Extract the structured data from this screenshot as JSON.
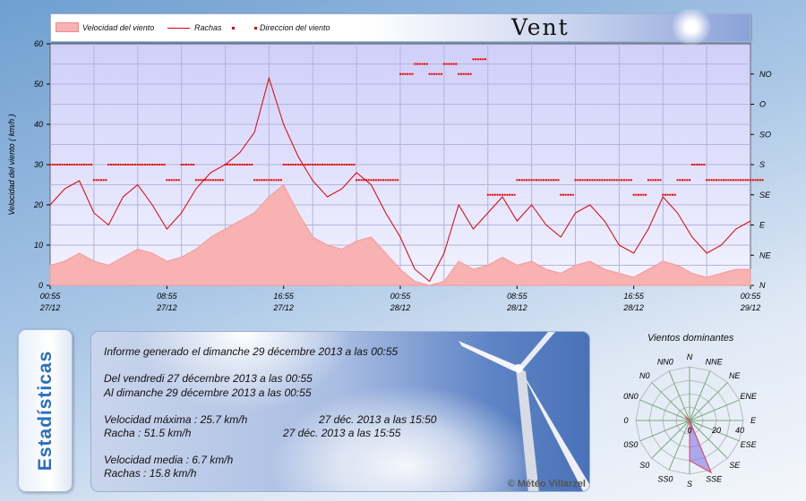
{
  "banner": {
    "title": "Vent",
    "legend": {
      "speed": "Velocidad del viento",
      "gust": "Rachas",
      "dir": "Direccion del viento"
    }
  },
  "colors": {
    "speed_fill": "#f9b2b2",
    "gust": "#dd0000",
    "dir": "#ee0000",
    "plot_bg": "#d4d4fb"
  },
  "chart_data": {
    "type": "line",
    "ylabel": "Velocidad del viento  ( km/h )",
    "ylim": [
      0,
      60
    ],
    "yticks": [
      "0",
      "10",
      "20",
      "30",
      "40",
      "50",
      "60"
    ],
    "y2ticks": [
      "N",
      "NE",
      "E",
      "SE",
      "S",
      "SO",
      "O",
      "NO"
    ],
    "y2lim": [
      0,
      360
    ],
    "xlim_hours": [
      0,
      48
    ],
    "xticks": [
      {
        "h": 0,
        "t": "00:55",
        "d": "27/12"
      },
      {
        "h": 8,
        "t": "08:55",
        "d": "27/12"
      },
      {
        "h": 16,
        "t": "16:55",
        "d": "27/12"
      },
      {
        "h": 24,
        "t": "00:55",
        "d": "28/12"
      },
      {
        "h": 32,
        "t": "08:55",
        "d": "28/12"
      },
      {
        "h": 40,
        "t": "16:55",
        "d": "28/12"
      },
      {
        "h": 48,
        "t": "00:55",
        "d": "29/12"
      }
    ],
    "series": [
      {
        "name": "Velocidad del viento",
        "values": [
          5,
          6,
          8,
          6,
          5,
          7,
          9,
          8,
          6,
          7,
          9,
          12,
          14,
          16,
          18,
          22,
          25,
          18,
          12,
          10,
          9,
          11,
          12,
          8,
          4,
          1,
          0,
          1,
          6,
          4,
          5,
          7,
          5,
          6,
          4,
          3,
          5,
          6,
          4,
          3,
          2,
          4,
          6,
          5,
          3,
          2,
          3,
          4,
          4
        ]
      },
      {
        "name": "Rachas",
        "values": [
          20,
          24,
          26,
          18,
          15,
          22,
          25,
          20,
          14,
          18,
          24,
          28,
          30,
          33,
          38,
          51.5,
          40,
          32,
          26,
          22,
          24,
          28,
          25,
          18,
          12,
          4,
          1,
          8,
          20,
          14,
          18,
          22,
          16,
          20,
          15,
          12,
          18,
          20,
          16,
          10,
          8,
          14,
          22,
          18,
          12,
          8,
          10,
          14,
          16
        ]
      },
      {
        "name": "Direccion del viento",
        "values": [
          180,
          180,
          180,
          157,
          180,
          180,
          180,
          180,
          157,
          180,
          157,
          157,
          180,
          180,
          157,
          157,
          180,
          180,
          180,
          180,
          180,
          157,
          157,
          157,
          315,
          330,
          315,
          330,
          315,
          337,
          135,
          135,
          157,
          157,
          157,
          135,
          157,
          157,
          157,
          157,
          135,
          157,
          135,
          157,
          180,
          157,
          157,
          157,
          157
        ]
      }
    ],
    "rose": {
      "title": "Vientos dominantes",
      "directions": [
        "N",
        "NNE",
        "NE",
        "ENE",
        "E",
        "ESE",
        "SE",
        "SSE",
        "S",
        "SS0",
        "S0",
        "0S0",
        "0",
        "0N0",
        "N0",
        "NN0"
      ],
      "values": [
        0,
        0,
        0,
        0,
        0,
        0,
        0,
        42,
        30,
        0,
        0,
        0,
        0,
        1,
        5,
        0
      ],
      "rlim": [
        0,
        40
      ],
      "rticks": [
        "0",
        "20",
        "40"
      ]
    }
  },
  "stats": {
    "tab": "Estadísticas",
    "generated": "Informe generado el dimanche 29 décembre 2013 a las 00:55",
    "from": "Del vendredi 27 décembre 2013 a las 00:55",
    "to": "Al dimanche 29 décembre 2013 a las 00:55",
    "max_speed": "Velocidad máxima : 25.7 km/h",
    "max_speed_date": "27 déc. 2013 a las 15:50",
    "max_gust": "Racha : 51.5 km/h",
    "max_gust_date": "27 déc. 2013 a las 15:55",
    "avg_speed": "Velocidad media : 6.7 km/h",
    "avg_gust": "Rachas : 15.8 km/h",
    "copyright": "© Météo Villarzel"
  }
}
